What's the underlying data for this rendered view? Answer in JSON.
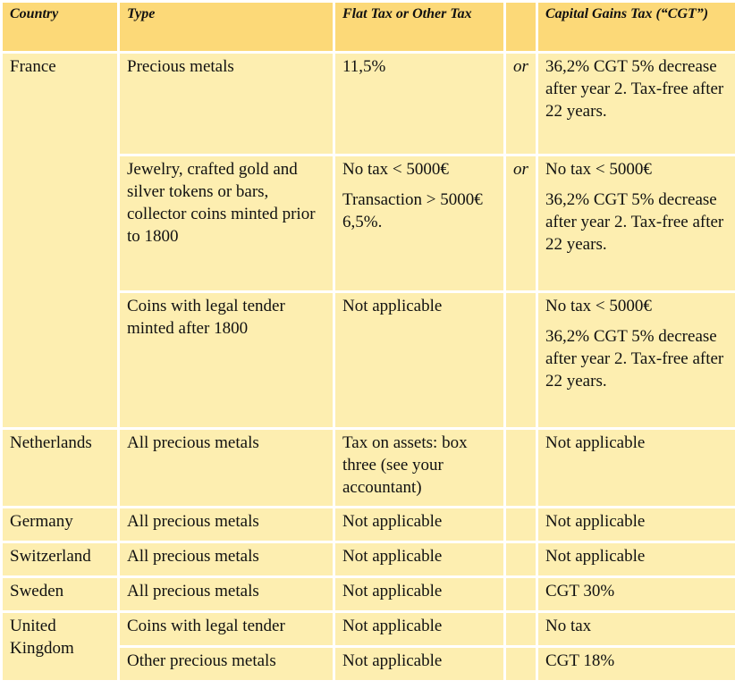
{
  "headers": {
    "country": "Country",
    "type": "Type",
    "flat_tax": "Flat Tax or Other Tax",
    "or": "",
    "cgt": "Capital Gains Tax (“CGT”)"
  },
  "rows": [
    {
      "country": "France",
      "type": "Precious metals",
      "flat_tax": [
        "11,5%"
      ],
      "or": "or",
      "cgt": [
        "36,2% CGT 5% decrease after year 2. Tax-free after 22 years."
      ]
    },
    {
      "type": "Jewelry, crafted gold and silver tokens or bars, collector coins minted prior to 1800",
      "flat_tax": [
        "No tax < 5000€",
        "Transaction > 5000€ 6,5%."
      ],
      "or": "or",
      "cgt": [
        "No tax < 5000€",
        "36,2% CGT 5% decrease after year 2. Tax-free after 22 years."
      ]
    },
    {
      "type": "Coins with legal tender minted after 1800",
      "flat_tax": [
        "Not applicable"
      ],
      "or": "",
      "cgt": [
        "No tax < 5000€",
        "36,2% CGT 5% decrease after year 2. Tax-free after 22 years."
      ]
    },
    {
      "country": "Netherlands",
      "type": "All precious metals",
      "flat_tax": [
        "Tax on assets: box three (see your accountant)"
      ],
      "or": "",
      "cgt": [
        "Not applicable"
      ]
    },
    {
      "country": "Germany",
      "type": "All precious metals",
      "flat_tax": [
        "Not applicable"
      ],
      "or": "",
      "cgt": [
        "Not applicable"
      ]
    },
    {
      "country": "Switzerland",
      "type": "All precious metals",
      "flat_tax": [
        "Not applicable"
      ],
      "or": "",
      "cgt": [
        "Not applicable"
      ]
    },
    {
      "country": "Sweden",
      "type": "All precious metals",
      "flat_tax": [
        "Not applicable"
      ],
      "or": "",
      "cgt": [
        "CGT 30%"
      ]
    },
    {
      "country": "United Kingdom",
      "type": "Coins with legal tender",
      "flat_tax": [
        "Not applicable"
      ],
      "or": "",
      "cgt": [
        "No tax"
      ]
    },
    {
      "type": "Other precious metals",
      "flat_tax": [
        "Not applicable"
      ],
      "or": "",
      "cgt": [
        "CGT 18%"
      ]
    }
  ],
  "colors": {
    "header_bg": "#fcd978",
    "cell_bg": "#fdeeb0"
  }
}
